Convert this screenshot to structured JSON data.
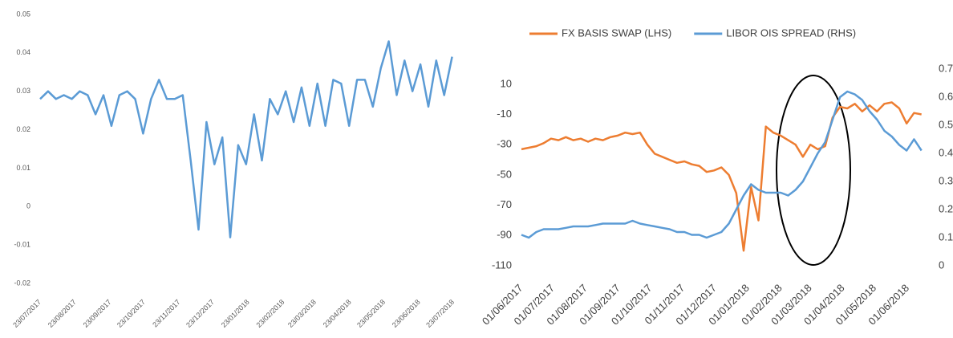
{
  "chart_data": [
    {
      "type": "line",
      "color": "#5b9bd5",
      "x": [
        "23/07/2017",
        "30/07/2017",
        "06/08/2017",
        "13/08/2017",
        "20/08/2017",
        "27/08/2017",
        "03/09/2017",
        "10/09/2017",
        "17/09/2017",
        "24/09/2017",
        "01/10/2017",
        "08/10/2017",
        "15/10/2017",
        "22/10/2017",
        "29/10/2017",
        "05/11/2017",
        "12/11/2017",
        "19/11/2017",
        "26/11/2017",
        "03/12/2017",
        "10/12/2017",
        "17/12/2017",
        "24/12/2017",
        "31/12/2017",
        "07/01/2018",
        "14/01/2018",
        "21/01/2018",
        "28/01/2018",
        "04/02/2018",
        "11/02/2018",
        "18/02/2018",
        "25/02/2018",
        "04/03/2018",
        "11/03/2018",
        "18/03/2018",
        "25/03/2018",
        "01/04/2018",
        "08/04/2018",
        "15/04/2018",
        "22/04/2018",
        "29/04/2018",
        "06/05/2018",
        "13/05/2018",
        "20/05/2018",
        "27/05/2018",
        "03/06/2018",
        "10/06/2018",
        "17/06/2018",
        "24/06/2018",
        "01/07/2018",
        "08/07/2018",
        "15/07/2018",
        "22/07/2018"
      ],
      "values": [
        0.028,
        0.03,
        0.028,
        0.029,
        0.028,
        0.03,
        0.029,
        0.024,
        0.029,
        0.021,
        0.029,
        0.03,
        0.028,
        0.019,
        0.028,
        0.033,
        0.028,
        0.028,
        0.029,
        0.012,
        -0.006,
        0.022,
        0.011,
        0.018,
        -0.008,
        0.016,
        0.011,
        0.024,
        0.012,
        0.028,
        0.024,
        0.03,
        0.022,
        0.031,
        0.021,
        0.032,
        0.021,
        0.033,
        0.032,
        0.021,
        0.033,
        0.033,
        0.026,
        0.036,
        0.043,
        0.029,
        0.038,
        0.03,
        0.037,
        0.026,
        0.038,
        0.029,
        0.039
      ],
      "xlim": [
        "23/07/2017",
        "23/07/2018"
      ],
      "xticks": [
        "23/07/2017",
        "23/08/2017",
        "23/09/2017",
        "23/10/2017",
        "23/11/2017",
        "23/12/2017",
        "23/01/2018",
        "23/02/2018",
        "23/03/2018",
        "23/04/2018",
        "23/05/2018",
        "23/06/2018",
        "23/07/2018"
      ],
      "ylim": [
        -0.02,
        0.05
      ],
      "yticks": [
        -0.02,
        -0.01,
        0,
        0.01,
        0.02,
        0.03,
        0.04,
        0.05
      ]
    },
    {
      "type": "line",
      "x": [
        "01/06/2017",
        "08/06/2017",
        "15/06/2017",
        "22/06/2017",
        "29/06/2017",
        "06/07/2017",
        "13/07/2017",
        "20/07/2017",
        "27/07/2017",
        "03/08/2017",
        "10/08/2017",
        "17/08/2017",
        "24/08/2017",
        "31/08/2017",
        "07/09/2017",
        "14/09/2017",
        "21/09/2017",
        "28/09/2017",
        "05/10/2017",
        "12/10/2017",
        "19/10/2017",
        "26/10/2017",
        "02/11/2017",
        "09/11/2017",
        "16/11/2017",
        "23/11/2017",
        "30/11/2017",
        "07/12/2017",
        "14/12/2017",
        "21/12/2017",
        "28/12/2017",
        "04/01/2018",
        "11/01/2018",
        "18/01/2018",
        "25/01/2018",
        "01/02/2018",
        "08/02/2018",
        "15/02/2018",
        "22/02/2018",
        "01/03/2018",
        "08/03/2018",
        "15/03/2018",
        "22/03/2018",
        "29/03/2018",
        "05/04/2018",
        "12/04/2018",
        "19/04/2018",
        "26/04/2018",
        "03/05/2018",
        "10/05/2018",
        "17/05/2018",
        "24/05/2018",
        "31/05/2018",
        "07/06/2018",
        "14/06/2018"
      ],
      "series": [
        {
          "name": "FX BASIS SWAP (LHS)",
          "color": "#ed7d31",
          "values": [
            -33,
            -32,
            -31,
            -29,
            -26,
            -27,
            -25,
            -27,
            -26,
            -28,
            -26,
            -27,
            -25,
            -24,
            -22,
            -23,
            -22,
            -30,
            -36,
            -38,
            -40,
            -42,
            -41,
            -43,
            -44,
            -48,
            -47,
            -45,
            -50,
            -62,
            -100,
            -58,
            -80,
            -18,
            -22,
            -24,
            -27,
            -30,
            -38,
            -30,
            -33,
            -31,
            -12,
            -5,
            -6,
            -3,
            -8,
            -4,
            -8,
            -3,
            -2,
            -6,
            -16,
            -9,
            -10
          ]
        },
        {
          "name": "LIBOR OIS SPREAD (RHS)",
          "color": "#5b9bd5",
          "axis": "y2",
          "values": [
            0.11,
            0.1,
            0.12,
            0.13,
            0.13,
            0.13,
            0.135,
            0.14,
            0.14,
            0.14,
            0.145,
            0.15,
            0.15,
            0.15,
            0.15,
            0.16,
            0.15,
            0.145,
            0.14,
            0.135,
            0.13,
            0.12,
            0.12,
            0.11,
            0.11,
            0.1,
            0.11,
            0.12,
            0.15,
            0.2,
            0.25,
            0.29,
            0.27,
            0.26,
            0.26,
            0.26,
            0.25,
            0.27,
            0.3,
            0.35,
            0.4,
            0.44,
            0.52,
            0.6,
            0.62,
            0.61,
            0.59,
            0.55,
            0.52,
            0.48,
            0.46,
            0.43,
            0.41,
            0.45,
            0.41
          ]
        }
      ],
      "xlim": [
        "01/06/2017",
        "15/06/2018"
      ],
      "xticks": [
        "01/06/2017",
        "01/07/2017",
        "01/08/2017",
        "01/09/2017",
        "01/10/2017",
        "01/11/2017",
        "01/12/2017",
        "01/01/2018",
        "01/02/2018",
        "01/03/2018",
        "01/04/2018",
        "01/05/2018",
        "01/06/2018"
      ],
      "ylim": [
        -110,
        20
      ],
      "yticks": [
        -110,
        -90,
        -70,
        -50,
        -30,
        -10,
        10
      ],
      "y2lim": [
        0,
        0.7
      ],
      "y2ticks": [
        0,
        0.1,
        0.2,
        0.3,
        0.4,
        0.5,
        0.6,
        0.7
      ],
      "legend": "top"
    }
  ]
}
